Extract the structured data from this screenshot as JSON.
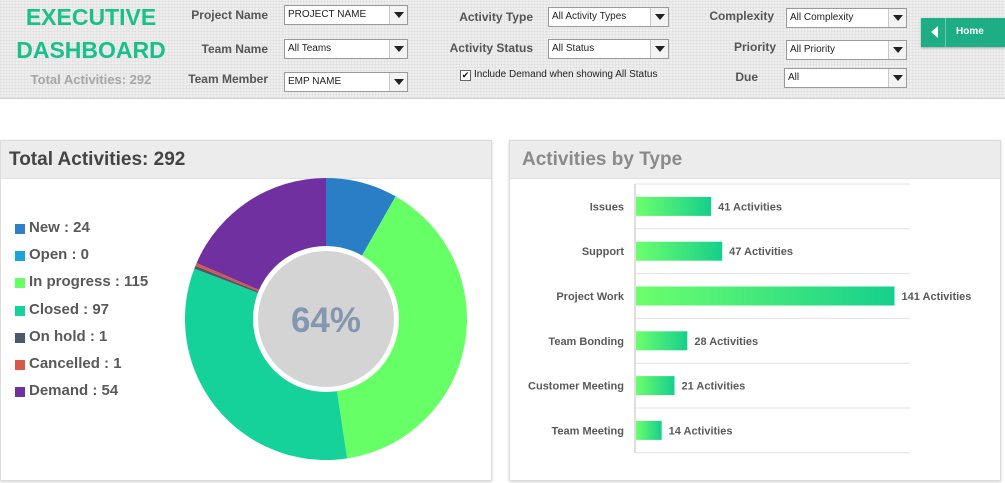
{
  "header": {
    "title_line1": "EXECUTIVE",
    "title_line2": "DASHBOARD",
    "total_label": "Total Activities: 292"
  },
  "filters": {
    "project_name": {
      "label": "Project Name",
      "value": "PROJECT NAME"
    },
    "team_name": {
      "label": "Team Name",
      "value": "All Teams"
    },
    "team_member": {
      "label": "Team Member",
      "value": "EMP NAME"
    },
    "activity_type": {
      "label": "Activity Type",
      "value": "All Activity Types"
    },
    "activity_status": {
      "label": "Activity Status",
      "value": "All Status"
    },
    "include_demand": {
      "label": "Include Demand when showing All Status",
      "checked": true,
      "mark": "✔"
    },
    "complexity": {
      "label": "Complexity",
      "value": "All Complexity"
    },
    "priority": {
      "label": "Priority",
      "value": "All Priority"
    },
    "due": {
      "label": "Due",
      "value": "All"
    }
  },
  "home_button": {
    "label": "Home"
  },
  "panel_total": {
    "title": "Total Activities: 292",
    "legend": [
      {
        "label": "New : 24",
        "color": "#2f80c8"
      },
      {
        "label": "Open : 0",
        "color": "#1aa3dc"
      },
      {
        "label": "In progress : 115",
        "color": "#66ff66"
      },
      {
        "label": "Closed : 97",
        "color": "#14d29a"
      },
      {
        "label": "On hold : 1",
        "color": "#4a5a6a"
      },
      {
        "label": "Cancelled : 1",
        "color": "#d9574a"
      },
      {
        "label": "Demand : 54",
        "color": "#7030a0"
      }
    ],
    "center_text": "64%"
  },
  "panel_type": {
    "title": "Activities by Type"
  },
  "chart_data": [
    {
      "type": "pie",
      "title": "Total Activities: 292",
      "categories": [
        "New",
        "Open",
        "In progress",
        "Closed",
        "On hold",
        "Cancelled",
        "Demand"
      ],
      "values": [
        24,
        0,
        115,
        97,
        1,
        1,
        54
      ],
      "colors": [
        "#2a7ec6",
        "#1aa3dc",
        "#66ff66",
        "#14d29a",
        "#4a5a6a",
        "#d9574a",
        "#7030a0"
      ],
      "center_label": "64%",
      "donut": true
    },
    {
      "type": "bar",
      "orientation": "horizontal",
      "title": "Activities by Type",
      "categories": [
        "Issues",
        "Support",
        "Project Work",
        "Team Bonding",
        "Customer Meeting",
        "Team Meeting"
      ],
      "values": [
        41,
        47,
        141,
        28,
        21,
        14
      ],
      "value_suffix": "Activities",
      "xlim": [
        0,
        150
      ],
      "grid": true
    }
  ]
}
